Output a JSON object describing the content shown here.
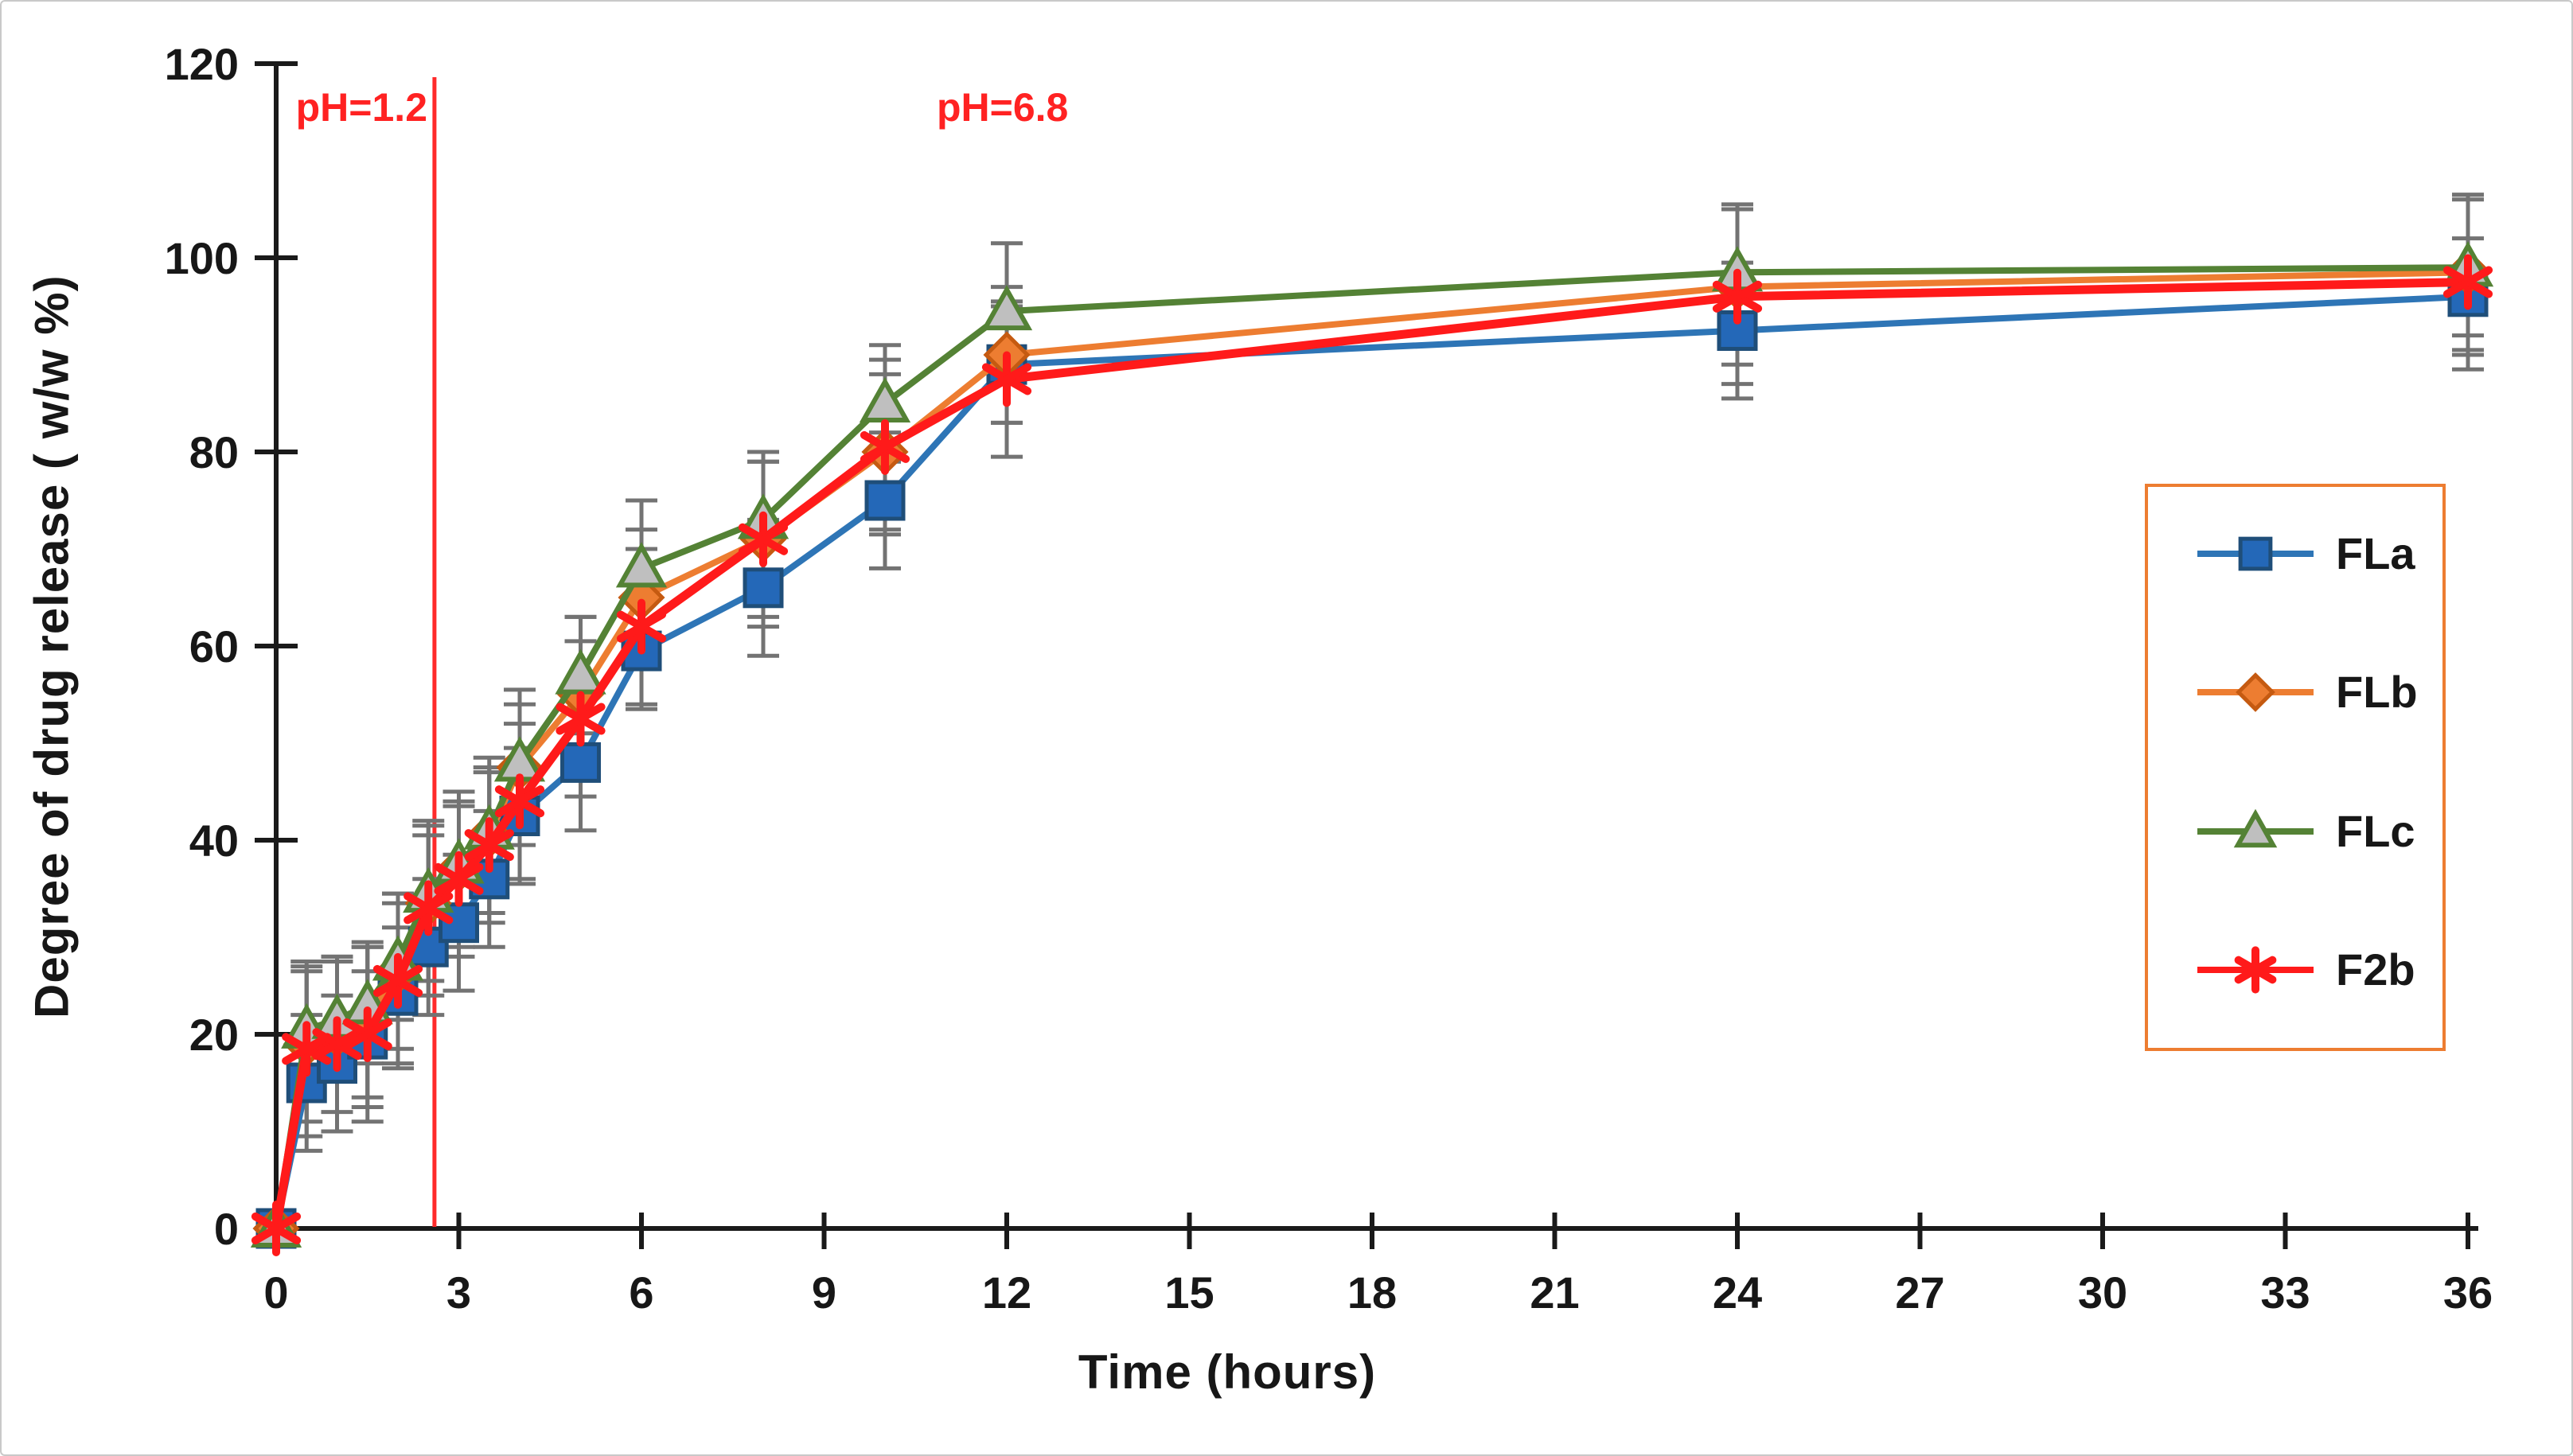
{
  "chart_data": {
    "type": "line",
    "title": "",
    "xlabel": "Time (hours)",
    "ylabel": "Degree of drug release ( w/w %)",
    "xlim": [
      0,
      36
    ],
    "ylim": [
      0,
      120
    ],
    "x_ticks": [
      0,
      3,
      6,
      9,
      12,
      15,
      18,
      21,
      24,
      27,
      30,
      33,
      36
    ],
    "y_ticks": [
      0,
      20,
      40,
      60,
      80,
      100,
      120
    ],
    "grid": false,
    "legend_position": "right-inside-orange-box",
    "error_bar_color": "#737373",
    "axis_color": "#1a1a1a",
    "x": [
      0,
      0.5,
      1,
      1.5,
      2,
      2.5,
      3,
      3.5,
      4,
      5,
      6,
      8,
      10,
      12,
      24,
      36
    ],
    "phase_line": {
      "x_hours": 2.6,
      "color": "#FF2A2A"
    },
    "annotations": [
      {
        "text": "pH=1.2",
        "color": "#FF2A2A",
        "x_hours": 2.4,
        "align": "right"
      },
      {
        "text": "pH=6.8",
        "color": "#FF2A2A",
        "x_hours": 10.9,
        "align": "left"
      }
    ],
    "series": [
      {
        "name": "FLa",
        "marker": "square",
        "color": "#2E75B6",
        "marker_fill": "#2468B8",
        "marker_edge": "#1F4E79",
        "line_width": 8,
        "values": [
          0,
          15,
          17,
          19.5,
          24,
          29,
          31.5,
          36,
          42.5,
          48,
          59.5,
          66,
          75,
          89,
          92.5,
          96
        ],
        "errors": [
          0,
          7,
          7,
          7,
          7,
          7,
          7,
          7,
          7,
          7,
          6,
          7,
          7,
          6,
          7,
          6
        ]
      },
      {
        "name": "FLb",
        "marker": "diamond",
        "color": "#ED7D31",
        "marker_fill": "#ED7D31",
        "marker_edge": "#C55A11",
        "line_width": 8,
        "values": [
          0,
          19,
          20,
          21.5,
          26.5,
          33.5,
          37,
          40.5,
          47.5,
          55,
          65,
          71,
          80,
          90,
          97,
          98.5
        ],
        "errors": [
          0,
          8,
          8,
          8,
          8,
          8,
          8,
          8,
          8,
          8,
          7,
          8,
          8,
          7,
          8,
          8
        ]
      },
      {
        "name": "FLc",
        "marker": "triangle",
        "color": "#548235",
        "marker_fill": "#BFBFBF",
        "marker_edge": "#548235",
        "line_width": 8,
        "values": [
          0,
          20.5,
          21.5,
          23,
          27.5,
          34.5,
          37.5,
          41,
          48,
          57,
          68,
          73,
          85,
          94.5,
          98.5,
          99
        ],
        "errors": [
          0,
          6,
          6,
          6,
          6,
          6,
          6,
          6,
          6,
          6,
          7,
          6,
          6,
          7,
          7,
          7
        ]
      },
      {
        "name": "F2b",
        "marker": "asterisk",
        "color": "#FF1A1A",
        "marker_fill": "#FF1A1A",
        "marker_edge": "#FF1A1A",
        "line_width": 11,
        "values": [
          0,
          18.5,
          19,
          20,
          25.5,
          33,
          36,
          39.5,
          44,
          52.5,
          62,
          71,
          80.5,
          87.5,
          96,
          97.5
        ],
        "errors": [
          0,
          9,
          9,
          9,
          9,
          9,
          8,
          8,
          8,
          8,
          8,
          9,
          9,
          8,
          9,
          9
        ]
      }
    ]
  }
}
